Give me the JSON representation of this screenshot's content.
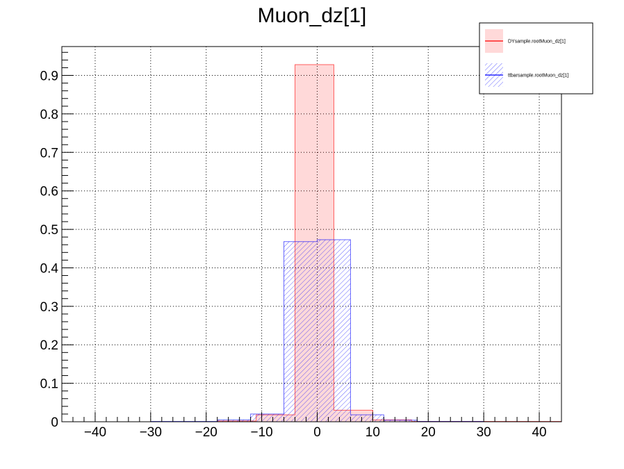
{
  "chart_data": {
    "type": "bar",
    "title": "Muon_dz[1]",
    "xlabel": "",
    "ylabel": "",
    "xlim": [
      -46,
      44
    ],
    "ylim": [
      0,
      0.975
    ],
    "grid": true,
    "legend_position": "top-right",
    "x_ticks": [
      -40,
      -30,
      -20,
      -10,
      0,
      10,
      20,
      30,
      40
    ],
    "y_ticks": [
      0,
      0.1,
      0.2,
      0.3,
      0.4,
      0.5,
      0.6,
      0.7,
      0.8,
      0.9
    ],
    "x_tick_labels": [
      "−40",
      "−30",
      "−20",
      "−10",
      "0",
      "10",
      "20",
      "30",
      "40"
    ],
    "y_tick_labels": [
      "0",
      "0.1",
      "0.2",
      "0.3",
      "0.4",
      "0.5",
      "0.6",
      "0.7",
      "0.8",
      "0.9"
    ],
    "series": [
      {
        "name": "DYsample.rootMuon_dz[1]",
        "color": "#ff0000",
        "style": "filled",
        "bins": [
          {
            "x0": -46,
            "x1": -18,
            "y": 0.0
          },
          {
            "x0": -18,
            "x1": -11,
            "y": 0.002
          },
          {
            "x0": -11,
            "x1": -4,
            "y": 0.018
          },
          {
            "x0": -4,
            "x1": 3,
            "y": 0.928
          },
          {
            "x0": 3,
            "x1": 10,
            "y": 0.03
          },
          {
            "x0": 10,
            "x1": 17,
            "y": 0.005
          },
          {
            "x0": 17,
            "x1": 44,
            "y": 0.001
          }
        ]
      },
      {
        "name": "ttbarsample.rootMuon_dz[1]",
        "color": "#0000ff",
        "style": "hatched",
        "bins": [
          {
            "x0": -46,
            "x1": -30,
            "y": 0.0
          },
          {
            "x0": -30,
            "x1": -18,
            "y": 0.001
          },
          {
            "x0": -18,
            "x1": -12,
            "y": 0.005
          },
          {
            "x0": -12,
            "x1": -6,
            "y": 0.02
          },
          {
            "x0": -6,
            "x1": 0,
            "y": 0.468
          },
          {
            "x0": 0,
            "x1": 6,
            "y": 0.473
          },
          {
            "x0": 6,
            "x1": 12,
            "y": 0.018
          },
          {
            "x0": 12,
            "x1": 18,
            "y": 0.004
          },
          {
            "x0": 18,
            "x1": 30,
            "y": 0.001
          },
          {
            "x0": 30,
            "x1": 44,
            "y": 0.0
          }
        ]
      }
    ]
  }
}
